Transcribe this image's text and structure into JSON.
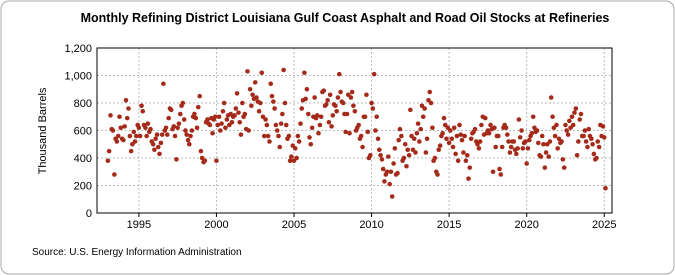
{
  "chart_data": {
    "type": "scatter",
    "title": "Monthly Refining District Louisiana Gulf Coast Asphalt and Road Oil Stocks at Refineries",
    "y_label": "Thousand Barrels",
    "source": "Source: U.S. Energy Information Administration",
    "color": "#a52a1a",
    "grid": true,
    "xlim": [
      1992.3,
      2025.5
    ],
    "xticks": [
      1995,
      2000,
      2005,
      2010,
      2015,
      2020,
      2025
    ],
    "ylim": [
      0,
      1200
    ],
    "yticks": [
      0,
      200,
      400,
      600,
      800,
      {
        "value": 1000,
        "label": "1,000"
      },
      {
        "value": 1200,
        "label": "1,200"
      }
    ],
    "x": [
      1993,
      1993.08,
      1993.17,
      1993.25,
      1993.33,
      1993.42,
      1993.5,
      1993.58,
      1993.67,
      1993.75,
      1993.83,
      1993.92,
      1994,
      1994.08,
      1994.17,
      1994.25,
      1994.33,
      1994.42,
      1994.5,
      1994.58,
      1994.67,
      1994.75,
      1994.83,
      1994.92,
      1995,
      1995.08,
      1995.17,
      1995.25,
      1995.33,
      1995.42,
      1995.5,
      1995.58,
      1995.67,
      1995.75,
      1995.83,
      1995.92,
      1996,
      1996.08,
      1996.17,
      1996.25,
      1996.33,
      1996.42,
      1996.5,
      1996.58,
      1996.67,
      1996.75,
      1996.83,
      1996.92,
      1997,
      1997.08,
      1997.17,
      1997.25,
      1997.33,
      1997.42,
      1997.5,
      1997.58,
      1997.67,
      1997.75,
      1997.83,
      1997.92,
      1998,
      1998.08,
      1998.17,
      1998.25,
      1998.33,
      1998.42,
      1998.5,
      1998.58,
      1998.67,
      1998.75,
      1998.83,
      1998.92,
      1999,
      1999.08,
      1999.17,
      1999.25,
      1999.33,
      1999.42,
      1999.5,
      1999.58,
      1999.67,
      1999.75,
      1999.83,
      1999.92,
      2000,
      2000.08,
      2000.17,
      2000.25,
      2000.33,
      2000.42,
      2000.5,
      2000.58,
      2000.67,
      2000.75,
      2000.83,
      2000.92,
      2001,
      2001.08,
      2001.17,
      2001.25,
      2001.33,
      2001.42,
      2001.5,
      2001.58,
      2001.67,
      2001.75,
      2001.83,
      2001.92,
      2002,
      2002.08,
      2002.17,
      2002.25,
      2002.33,
      2002.42,
      2002.5,
      2002.58,
      2002.67,
      2002.75,
      2002.83,
      2002.92,
      2003,
      2003.08,
      2003.17,
      2003.25,
      2003.33,
      2003.42,
      2003.5,
      2003.58,
      2003.67,
      2003.75,
      2003.83,
      2003.92,
      2004,
      2004.08,
      2004.17,
      2004.25,
      2004.33,
      2004.42,
      2004.5,
      2004.58,
      2004.67,
      2004.75,
      2004.83,
      2004.92,
      2005,
      2005.08,
      2005.17,
      2005.25,
      2005.33,
      2005.42,
      2005.5,
      2005.58,
      2005.67,
      2005.75,
      2005.83,
      2005.92,
      2006,
      2006.08,
      2006.17,
      2006.25,
      2006.33,
      2006.42,
      2006.5,
      2006.58,
      2006.67,
      2006.75,
      2006.83,
      2006.92,
      2007,
      2007.08,
      2007.17,
      2007.25,
      2007.33,
      2007.42,
      2007.5,
      2007.58,
      2007.67,
      2007.75,
      2007.83,
      2007.92,
      2008,
      2008.08,
      2008.17,
      2008.25,
      2008.33,
      2008.42,
      2008.5,
      2008.58,
      2008.67,
      2008.75,
      2008.83,
      2008.92,
      2009,
      2009.08,
      2009.17,
      2009.25,
      2009.33,
      2009.42,
      2009.5,
      2009.58,
      2009.67,
      2009.75,
      2009.83,
      2009.92,
      2010,
      2010.08,
      2010.17,
      2010.25,
      2010.33,
      2010.42,
      2010.5,
      2010.58,
      2010.67,
      2010.75,
      2010.83,
      2010.92,
      2011,
      2011.08,
      2011.17,
      2011.25,
      2011.33,
      2011.42,
      2011.5,
      2011.58,
      2011.67,
      2011.75,
      2011.83,
      2011.92,
      2012,
      2012.08,
      2012.17,
      2012.25,
      2012.33,
      2012.42,
      2012.5,
      2012.58,
      2012.67,
      2012.75,
      2012.83,
      2012.92,
      2013,
      2013.08,
      2013.17,
      2013.25,
      2013.33,
      2013.42,
      2013.5,
      2013.58,
      2013.67,
      2013.75,
      2013.83,
      2013.92,
      2014,
      2014.08,
      2014.17,
      2014.25,
      2014.33,
      2014.42,
      2014.5,
      2014.58,
      2014.67,
      2014.75,
      2014.83,
      2014.92,
      2015,
      2015.08,
      2015.17,
      2015.25,
      2015.33,
      2015.42,
      2015.5,
      2015.58,
      2015.67,
      2015.75,
      2015.83,
      2015.92,
      2016,
      2016.08,
      2016.17,
      2016.25,
      2016.33,
      2016.42,
      2016.5,
      2016.58,
      2016.67,
      2016.75,
      2016.83,
      2016.92,
      2017,
      2017.08,
      2017.17,
      2017.25,
      2017.33,
      2017.42,
      2017.5,
      2017.58,
      2017.67,
      2017.75,
      2017.83,
      2017.92,
      2018,
      2018.08,
      2018.17,
      2018.25,
      2018.33,
      2018.42,
      2018.5,
      2018.58,
      2018.67,
      2018.75,
      2018.83,
      2018.92,
      2019,
      2019.08,
      2019.17,
      2019.25,
      2019.33,
      2019.42,
      2019.5,
      2019.58,
      2019.67,
      2019.75,
      2019.83,
      2019.92,
      2020,
      2020.08,
      2020.17,
      2020.25,
      2020.33,
      2020.42,
      2020.5,
      2020.58,
      2020.67,
      2020.75,
      2020.83,
      2020.92,
      2021,
      2021.08,
      2021.17,
      2021.25,
      2021.33,
      2021.42,
      2021.5,
      2021.58,
      2021.67,
      2021.75,
      2021.83,
      2021.92,
      2022,
      2022.08,
      2022.17,
      2022.25,
      2022.33,
      2022.42,
      2022.5,
      2022.58,
      2022.67,
      2022.75,
      2022.83,
      2022.92,
      2023,
      2023.08,
      2023.17,
      2023.25,
      2023.33,
      2023.42,
      2023.5,
      2023.58,
      2023.67,
      2023.75,
      2023.83,
      2023.92,
      2024,
      2024.08,
      2024.17,
      2024.25,
      2024.33,
      2024.42,
      2024.5,
      2024.58,
      2024.67,
      2024.75,
      2024.83,
      2024.92,
      2025,
      2025.08
    ],
    "values": [
      380,
      450,
      710,
      610,
      600,
      280,
      540,
      520,
      560,
      700,
      620,
      540,
      530,
      630,
      820,
      690,
      760,
      560,
      450,
      500,
      590,
      520,
      560,
      640,
      620,
      560,
      780,
      740,
      640,
      620,
      560,
      650,
      590,
      610,
      520,
      500,
      460,
      540,
      570,
      480,
      430,
      510,
      570,
      940,
      600,
      620,
      570,
      690,
      760,
      750,
      610,
      630,
      560,
      390,
      620,
      650,
      720,
      780,
      800,
      680,
      600,
      570,
      530,
      500,
      560,
      600,
      700,
      720,
      690,
      620,
      770,
      850,
      450,
      400,
      370,
      380,
      660,
      680,
      650,
      640,
      690,
      580,
      680,
      700,
      380,
      640,
      700,
      600,
      650,
      740,
      800,
      620,
      680,
      710,
      640,
      720,
      660,
      700,
      710,
      760,
      870,
      730,
      660,
      570,
      800,
      700,
      720,
      610,
      1030,
      600,
      900,
      780,
      860,
      830,
      950,
      840,
      810,
      740,
      800,
      1020,
      700,
      560,
      680,
      640,
      560,
      520,
      940,
      850,
      810,
      760,
      640,
      600,
      560,
      480,
      650,
      720,
      1040,
      800,
      640,
      540,
      560,
      380,
      410,
      490,
      380,
      470,
      400,
      560,
      520,
      650,
      760,
      820,
      1020,
      830,
      900,
      720,
      550,
      500,
      620,
      700,
      840,
      690,
      710,
      580,
      640,
      700,
      880,
      890,
      780,
      790,
      820,
      660,
      860,
      630,
      710,
      790,
      780,
      740,
      840,
      1010,
      880,
      810,
      800,
      720,
      590,
      720,
      860,
      580,
      840,
      880,
      780,
      740,
      600,
      620,
      640,
      540,
      560,
      480,
      700,
      700,
      860,
      590,
      400,
      420,
      800,
      760,
      1010,
      600,
      700,
      540,
      460,
      420,
      390,
      320,
      230,
      280,
      300,
      410,
      210,
      300,
      120,
      360,
      470,
      280,
      290,
      530,
      610,
      560,
      380,
      400,
      500,
      340,
      460,
      420,
      750,
      560,
      460,
      540,
      440,
      580,
      650,
      520,
      610,
      780,
      700,
      760,
      440,
      540,
      820,
      880,
      800,
      620,
      380,
      400,
      300,
      280,
      460,
      490,
      560,
      580,
      690,
      640,
      540,
      620,
      510,
      600,
      540,
      480,
      620,
      430,
      560,
      380,
      640,
      570,
      530,
      440,
      560,
      380,
      420,
      250,
      330,
      540,
      580,
      590,
      610,
      520,
      500,
      470,
      520,
      640,
      700,
      570,
      690,
      580,
      600,
      580,
      640,
      610,
      300,
      620,
      480,
      560,
      560,
      320,
      280,
      480,
      620,
      640,
      620,
      570,
      520,
      440,
      480,
      520,
      520,
      460,
      430,
      470,
      680,
      550,
      600,
      470,
      510,
      520,
      360,
      470,
      530,
      560,
      580,
      700,
      620,
      590,
      600,
      510,
      420,
      410,
      560,
      500,
      330,
      440,
      500,
      410,
      520,
      840,
      700,
      620,
      560,
      640,
      470,
      540,
      510,
      520,
      390,
      330,
      640,
      600,
      570,
      670,
      620,
      700,
      640,
      730,
      760,
      420,
      520,
      680,
      720,
      560,
      560,
      600,
      520,
      480,
      610,
      560,
      540,
      500,
      430,
      390,
      400,
      520,
      480,
      640,
      560,
      630,
      550,
      180
    ]
  }
}
